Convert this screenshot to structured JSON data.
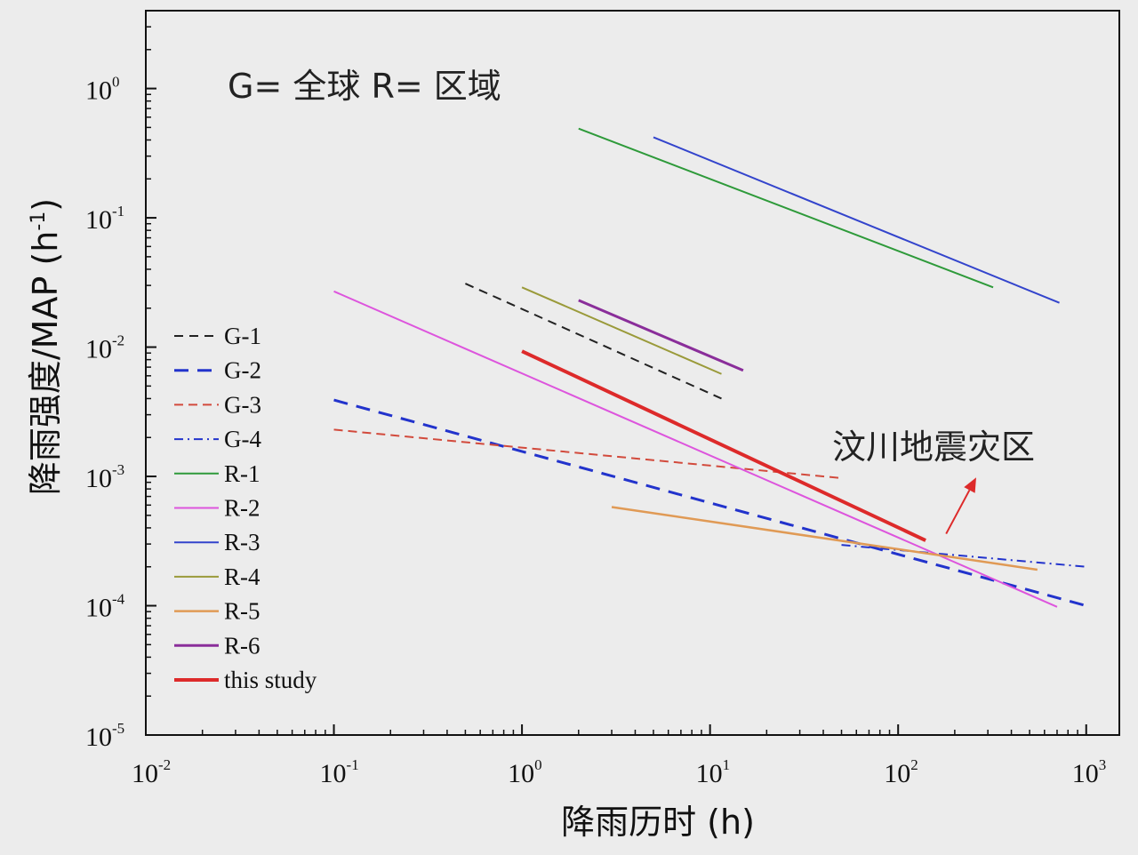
{
  "chart_data": {
    "type": "line",
    "x_scale": "log",
    "y_scale": "log",
    "xlim": [
      0.01,
      1500
    ],
    "ylim": [
      1e-05,
      4
    ],
    "x_ticks": [
      {
        "base": "10",
        "exp": "-2",
        "value": 0.01
      },
      {
        "base": "10",
        "exp": "-1",
        "value": 0.1
      },
      {
        "base": "10",
        "exp": "0",
        "value": 1
      },
      {
        "base": "10",
        "exp": "1",
        "value": 10
      },
      {
        "base": "10",
        "exp": "2",
        "value": 100
      },
      {
        "base": "10",
        "exp": "3",
        "value": 1000
      }
    ],
    "y_ticks": [
      {
        "base": "10",
        "exp": "0",
        "value": 1
      },
      {
        "base": "10",
        "exp": "-1",
        "value": 0.1
      },
      {
        "base": "10",
        "exp": "-2",
        "value": 0.01
      },
      {
        "base": "10",
        "exp": "-3",
        "value": 0.001
      },
      {
        "base": "10",
        "exp": "-4",
        "value": 0.0001
      },
      {
        "base": "10",
        "exp": "-5",
        "value": 1e-05
      }
    ],
    "xlabel": "降雨历时  (h)",
    "ylabel_main": "降雨强度/MAP (h",
    "ylabel_sup": "-1",
    "ylabel_close": ")",
    "annotation_top": "G= 全球   R= 区域",
    "annotation_area": "汶川地震灾区",
    "annotation_arrow": {
      "from": [
        180,
        0.00036
      ],
      "to": [
        260,
        0.00098
      ]
    },
    "legend_placement": "left",
    "series": [
      {
        "name": "G-1",
        "color": "#222222",
        "dash": "10,7",
        "width": 2,
        "x": [
          0.5,
          11.5
        ],
        "y": [
          0.031,
          0.004
        ]
      },
      {
        "name": "G-2",
        "color": "#2233cc",
        "dash": "16,10",
        "width": 3,
        "x": [
          0.1,
          1000
        ],
        "y": [
          0.0039,
          0.0001
        ]
      },
      {
        "name": "G-3",
        "color": "#d24a3c",
        "dash": "10,6",
        "width": 2,
        "x": [
          0.1,
          50
        ],
        "y": [
          0.0023,
          0.00097
        ]
      },
      {
        "name": "G-4",
        "color": "#2233cc",
        "dash": "10,5,2,5",
        "width": 2,
        "x": [
          50,
          1000
        ],
        "y": [
          0.000295,
          0.0002
        ]
      },
      {
        "name": "R-1",
        "color": "#2e9a3a",
        "dash": "",
        "width": 2,
        "x": [
          2,
          320
        ],
        "y": [
          0.49,
          0.029
        ]
      },
      {
        "name": "R-2",
        "color": "#dd55dd",
        "dash": "",
        "width": 2,
        "x": [
          0.1,
          700
        ],
        "y": [
          0.027,
          9.8e-05
        ]
      },
      {
        "name": "R-3",
        "color": "#3344cc",
        "dash": "",
        "width": 2,
        "x": [
          5,
          720
        ],
        "y": [
          0.42,
          0.022
        ]
      },
      {
        "name": "R-4",
        "color": "#9a9a3a",
        "dash": "",
        "width": 2,
        "x": [
          1,
          11.5
        ],
        "y": [
          0.029,
          0.0062
        ]
      },
      {
        "name": "R-5",
        "color": "#e09a55",
        "dash": "",
        "width": 2.5,
        "x": [
          3,
          550
        ],
        "y": [
          0.00058,
          0.00019
        ]
      },
      {
        "name": "R-6",
        "color": "#8a2e9a",
        "dash": "",
        "width": 3,
        "x": [
          2,
          15
        ],
        "y": [
          0.023,
          0.0066
        ]
      },
      {
        "name": "this study",
        "color": "#dd2a2a",
        "dash": "",
        "width": 4,
        "x": [
          1,
          140
        ],
        "y": [
          0.0093,
          0.00032
        ]
      }
    ]
  }
}
